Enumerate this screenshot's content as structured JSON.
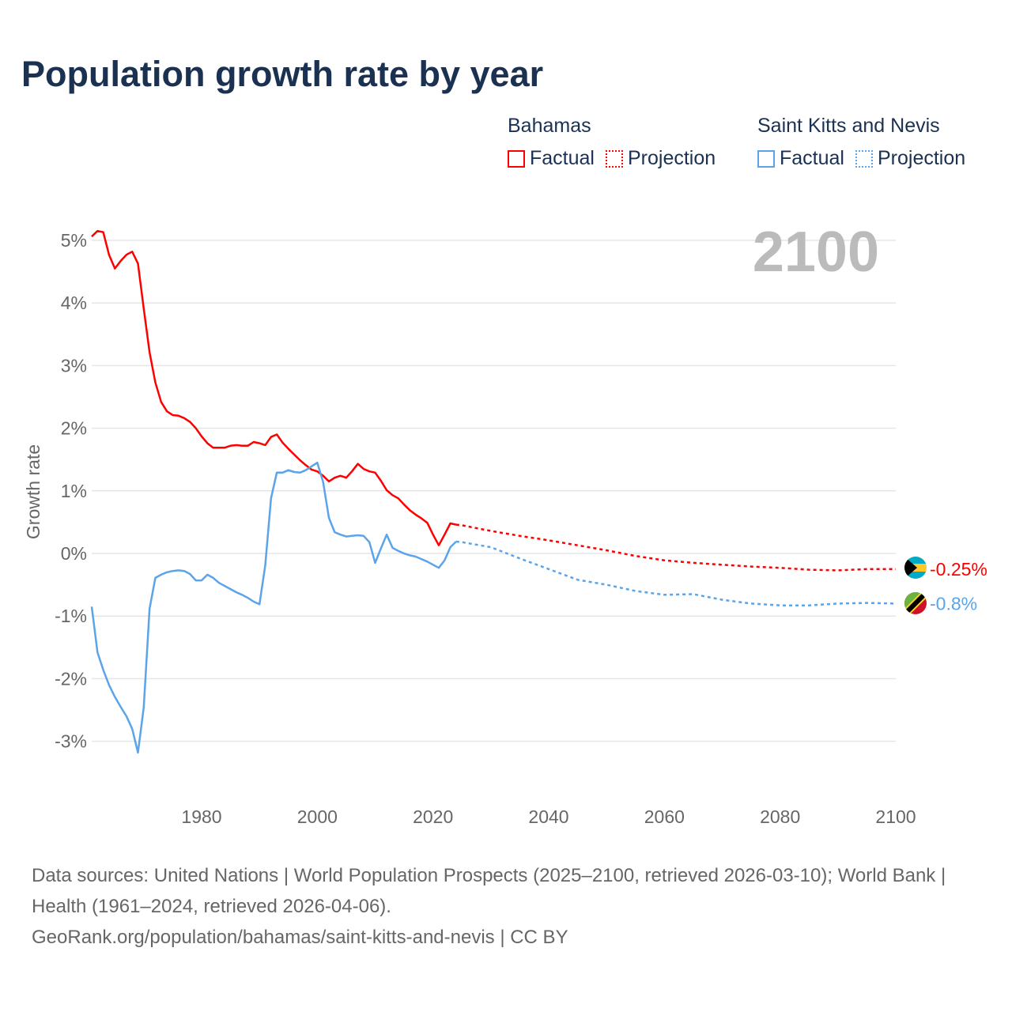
{
  "chart_data": {
    "type": "line",
    "title": "Population growth rate by year",
    "ylabel": "Growth rate",
    "xlabel": "",
    "year_label": "2100",
    "xlim": [
      1961,
      2100
    ],
    "ylim": [
      -3.8,
      5.2
    ],
    "x_ticks": [
      1980,
      2000,
      2020,
      2040,
      2060,
      2080,
      2100
    ],
    "y_ticks": [
      5,
      4,
      3,
      2,
      1,
      0,
      -1,
      -2,
      -3
    ],
    "y_tick_labels": [
      "5%",
      "4%",
      "3%",
      "2%",
      "1%",
      "0%",
      "-1%",
      "-2%",
      "-3%"
    ],
    "grid": true,
    "legend_position": "top-right",
    "legend": {
      "groups": [
        {
          "name": "Bahamas",
          "factual": "Factual",
          "projection": "Projection",
          "color": "#ff0000"
        },
        {
          "name": "Saint Kitts and Nevis",
          "factual": "Factual",
          "projection": "Projection",
          "color": "#5ba4ea"
        }
      ]
    },
    "series": [
      {
        "name": "Bahamas",
        "color": "#ff0000",
        "end_label": "-0.25%",
        "factual": {
          "x": [
            1961,
            1962,
            1963,
            1964,
            1965,
            1966,
            1967,
            1968,
            1969,
            1970,
            1971,
            1972,
            1973,
            1974,
            1975,
            1976,
            1977,
            1978,
            1979,
            1980,
            1981,
            1982,
            1983,
            1984,
            1985,
            1986,
            1987,
            1988,
            1989,
            1990,
            1991,
            1992,
            1993,
            1994,
            1995,
            1996,
            1997,
            1998,
            1999,
            2000,
            2001,
            2002,
            2003,
            2004,
            2005,
            2006,
            2007,
            2008,
            2009,
            2010,
            2011,
            2012,
            2013,
            2014,
            2015,
            2016,
            2017,
            2018,
            2019,
            2020,
            2021,
            2022,
            2023,
            2024
          ],
          "y": [
            5.06,
            5.15,
            5.13,
            4.77,
            4.55,
            4.67,
            4.77,
            4.82,
            4.63,
            3.91,
            3.21,
            2.73,
            2.42,
            2.27,
            2.21,
            2.2,
            2.16,
            2.1,
            2.0,
            1.87,
            1.76,
            1.69,
            1.69,
            1.69,
            1.72,
            1.73,
            1.72,
            1.72,
            1.78,
            1.76,
            1.73,
            1.86,
            1.9,
            1.77,
            1.67,
            1.58,
            1.49,
            1.41,
            1.34,
            1.31,
            1.24,
            1.15,
            1.21,
            1.24,
            1.21,
            1.31,
            1.43,
            1.35,
            1.31,
            1.29,
            1.16,
            1.01,
            0.93,
            0.88,
            0.78,
            0.69,
            0.62,
            0.56,
            0.49,
            0.3,
            0.13,
            0.3,
            0.48,
            0.46
          ]
        },
        "projection": {
          "x": [
            2024,
            2025,
            2030,
            2035,
            2040,
            2045,
            2050,
            2055,
            2060,
            2065,
            2070,
            2075,
            2080,
            2085,
            2090,
            2095,
            2100
          ],
          "y": [
            0.46,
            0.45,
            0.36,
            0.28,
            0.21,
            0.13,
            0.05,
            -0.04,
            -0.11,
            -0.15,
            -0.18,
            -0.21,
            -0.23,
            -0.26,
            -0.27,
            -0.25,
            -0.25
          ]
        }
      },
      {
        "name": "Saint Kitts and Nevis",
        "color": "#5ba4ea",
        "end_label": "-0.8%",
        "factual": {
          "x": [
            1961,
            1962,
            1963,
            1964,
            1965,
            1966,
            1967,
            1968,
            1969,
            1970,
            1971,
            1972,
            1973,
            1974,
            1975,
            1976,
            1977,
            1978,
            1979,
            1980,
            1981,
            1982,
            1983,
            1984,
            1985,
            1986,
            1987,
            1988,
            1989,
            1990,
            1991,
            1992,
            1993,
            1994,
            1995,
            1996,
            1997,
            1998,
            1999,
            2000,
            2001,
            2002,
            2003,
            2004,
            2005,
            2006,
            2007,
            2008,
            2009,
            2010,
            2011,
            2012,
            2013,
            2014,
            2015,
            2016,
            2017,
            2018,
            2019,
            2020,
            2021,
            2022,
            2023,
            2024
          ],
          "y": [
            -0.85,
            -1.58,
            -1.86,
            -2.1,
            -2.29,
            -2.45,
            -2.6,
            -2.8,
            -3.18,
            -2.46,
            -0.88,
            -0.39,
            -0.34,
            -0.3,
            -0.28,
            -0.27,
            -0.28,
            -0.33,
            -0.43,
            -0.43,
            -0.34,
            -0.39,
            -0.47,
            -0.52,
            -0.57,
            -0.62,
            -0.66,
            -0.71,
            -0.77,
            -0.81,
            -0.19,
            0.88,
            1.29,
            1.29,
            1.33,
            1.3,
            1.29,
            1.33,
            1.39,
            1.45,
            1.14,
            0.57,
            0.34,
            0.3,
            0.27,
            0.28,
            0.29,
            0.28,
            0.18,
            -0.15,
            0.08,
            0.3,
            0.09,
            0.04,
            0.0,
            -0.03,
            -0.05,
            -0.09,
            -0.13,
            -0.18,
            -0.23,
            -0.11,
            0.1,
            0.19
          ]
        },
        "projection": {
          "x": [
            2024,
            2025,
            2030,
            2035,
            2040,
            2045,
            2050,
            2055,
            2060,
            2065,
            2070,
            2075,
            2080,
            2085,
            2090,
            2095,
            2100
          ],
          "y": [
            0.19,
            0.18,
            0.1,
            -0.08,
            -0.25,
            -0.42,
            -0.5,
            -0.6,
            -0.66,
            -0.65,
            -0.74,
            -0.8,
            -0.83,
            -0.83,
            -0.8,
            -0.79,
            -0.8
          ]
        }
      }
    ]
  },
  "footer": {
    "sources": "Data sources: United Nations | World Population Prospects (2025–2100, retrieved 2026-03-10); World Bank | Health (1961–2024, retrieved 2026-04-06).",
    "credit": "GeoRank.org/population/bahamas/saint-kitts-and-nevis | CC BY"
  }
}
